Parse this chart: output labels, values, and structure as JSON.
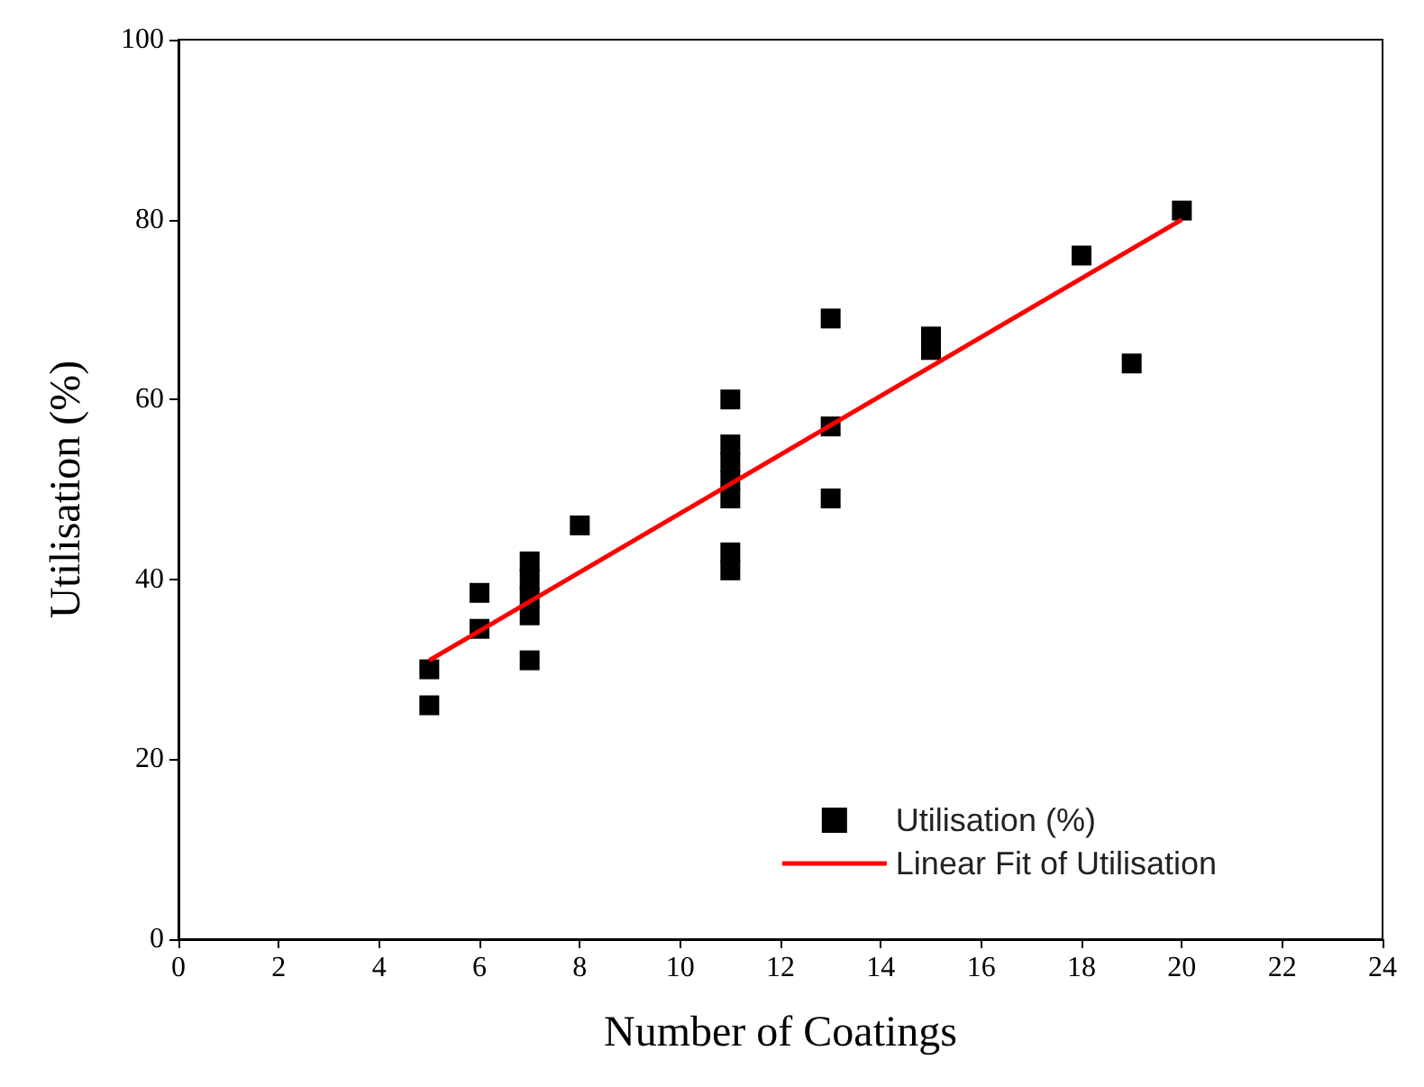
{
  "chart_data": {
    "type": "scatter",
    "xlabel": "Number of Coatings",
    "ylabel": "Utilisation (%)",
    "xlim": [
      0,
      24
    ],
    "xticks": [
      0,
      2,
      4,
      6,
      8,
      10,
      12,
      14,
      16,
      18,
      20,
      22,
      24
    ],
    "ylim": [
      0,
      100
    ],
    "yticks": [
      0,
      20,
      40,
      60,
      80,
      100
    ],
    "grid": false,
    "legend": "bottom right",
    "marker": "square",
    "series": [
      {
        "name": "Utilisation (%)",
        "color": "#000000",
        "x": [
          5,
          5,
          6,
          6,
          7,
          7,
          7,
          7,
          7,
          8,
          11,
          11,
          11,
          11,
          11,
          11,
          11,
          13,
          13,
          13,
          15,
          15,
          18,
          19,
          20
        ],
        "values": [
          30,
          26,
          38.5,
          34.5,
          42,
          40,
          38,
          36,
          31,
          46,
          60,
          55,
          53,
          51,
          49,
          43,
          41,
          69,
          57,
          49,
          67,
          65.5,
          76,
          64,
          81
        ]
      },
      {
        "name": "Linear Fit of Utilisation",
        "type": "line",
        "color": "#ff0000",
        "marker": "none",
        "line_style": "solid",
        "x": [
          5,
          20
        ],
        "values": [
          31,
          80
        ]
      }
    ]
  }
}
